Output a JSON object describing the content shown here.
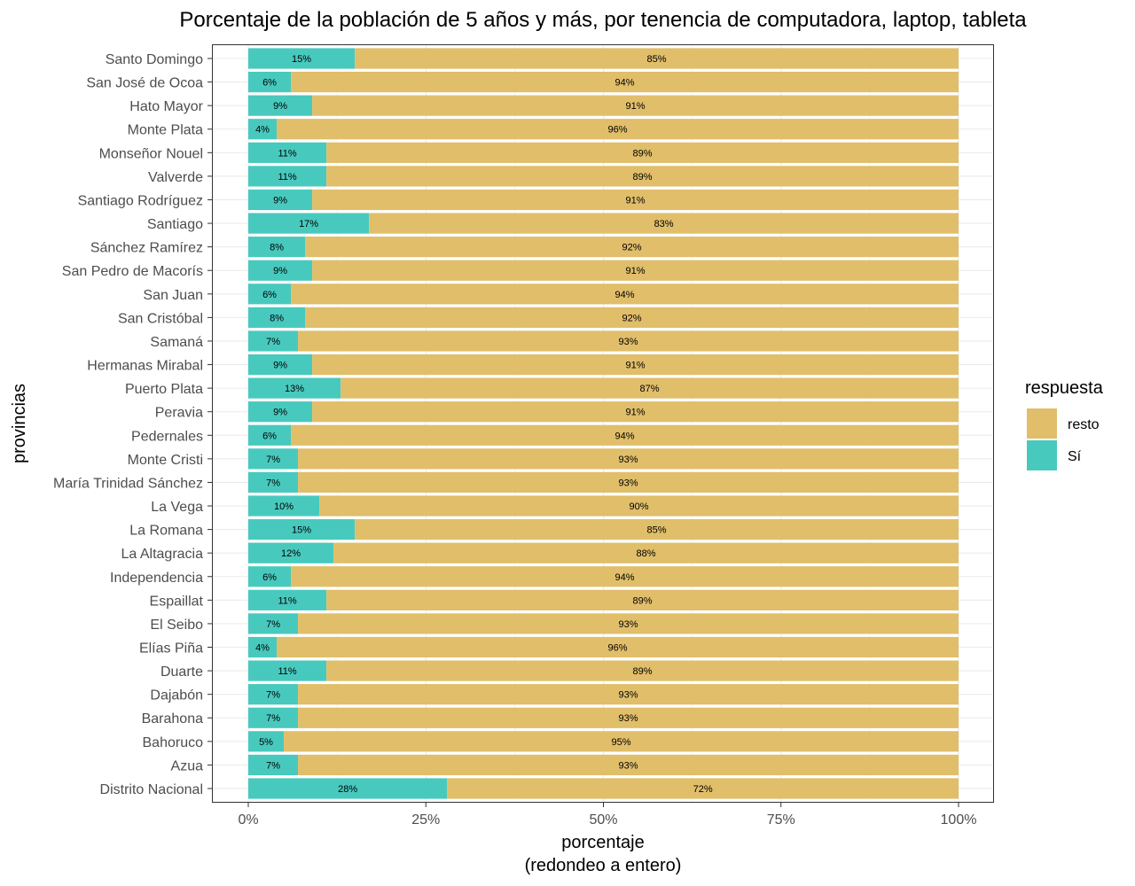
{
  "chart_data": {
    "type": "bar",
    "orientation": "horizontal",
    "stacked": true,
    "title": "Porcentaje de la población de 5 años y más, por tenencia de computadora, laptop, tableta",
    "xlabel": "porcentaje",
    "xlabel_sub": "(redondeo a entero)",
    "ylabel": "provincias",
    "xlim": [
      0,
      100
    ],
    "x_ticks": [
      "0%",
      "25%",
      "50%",
      "75%",
      "100%"
    ],
    "legend_title": "respuesta",
    "legend_position": "right",
    "grid": true,
    "categories": [
      "Santo Domingo",
      "San José de Ocoa",
      "Hato Mayor",
      "Monte Plata",
      "Monseñor Nouel",
      "Valverde",
      "Santiago Rodríguez",
      "Santiago",
      "Sánchez Ramírez",
      "San Pedro de Macorís",
      "San Juan",
      "San Cristóbal",
      "Samaná",
      "Hermanas Mirabal",
      "Puerto Plata",
      "Peravia",
      "Pedernales",
      "Monte Cristi",
      "María Trinidad Sánchez",
      "La Vega",
      "La Romana",
      "La Altagracia",
      "Independencia",
      "Espaillat",
      "El Seibo",
      "Elías Piña",
      "Duarte",
      "Dajabón",
      "Barahona",
      "Bahoruco",
      "Azua",
      "Distrito Nacional"
    ],
    "series": [
      {
        "name": "Sí",
        "color": "#48C9BE",
        "values": [
          15,
          6,
          9,
          4,
          11,
          11,
          9,
          17,
          8,
          9,
          6,
          8,
          7,
          9,
          13,
          9,
          6,
          7,
          7,
          10,
          15,
          12,
          6,
          11,
          7,
          4,
          11,
          7,
          7,
          5,
          7,
          28
        ]
      },
      {
        "name": "resto",
        "color": "#E0BE6A",
        "values": [
          85,
          94,
          91,
          96,
          89,
          89,
          91,
          83,
          92,
          91,
          94,
          92,
          93,
          91,
          87,
          91,
          94,
          93,
          93,
          90,
          85,
          88,
          94,
          89,
          93,
          96,
          89,
          93,
          93,
          95,
          93,
          72
        ]
      }
    ],
    "legend_order": [
      "resto",
      "Sí"
    ]
  }
}
